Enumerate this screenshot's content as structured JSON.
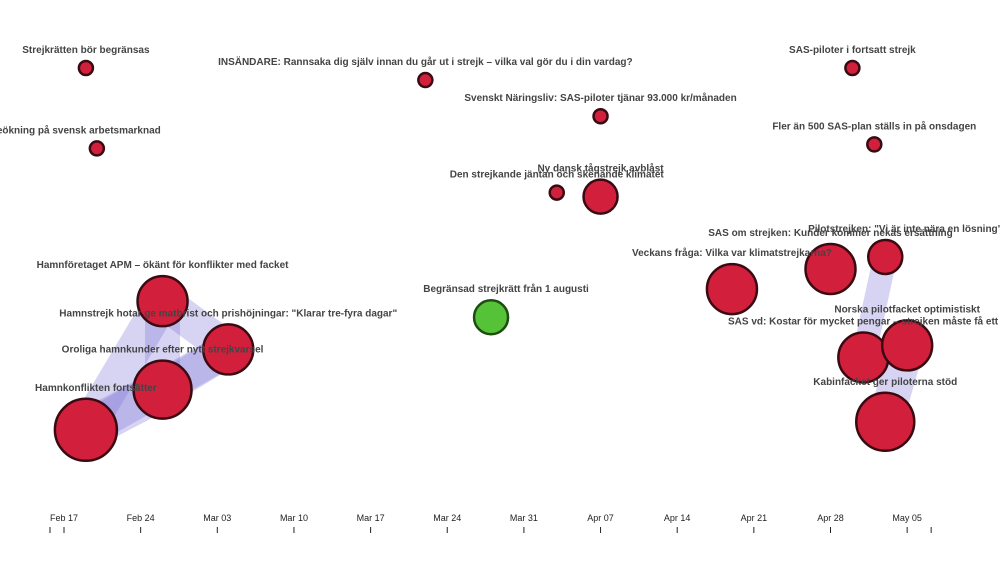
{
  "chart_data": {
    "type": "scatter",
    "title": "",
    "xlabel": "",
    "ylabel": "",
    "x_axis": {
      "type": "date",
      "ticks": [
        "Feb 17",
        "Feb 24",
        "Mar 03",
        "Mar 10",
        "Mar 17",
        "Mar 24",
        "Mar 31",
        "Apr 07",
        "Apr 14",
        "Apr 21",
        "Apr 28",
        "May 05"
      ]
    },
    "y_axis": {
      "visible": false
    },
    "grid": false,
    "legend": "none",
    "colors": {
      "default": "#d21f3c",
      "highlight": "#55c238",
      "link": "#7b6fd6",
      "outline": "#3a0a12"
    },
    "points": [
      {
        "id": "p1",
        "label": "Strejkrätten bör begränsas",
        "date": "2019-02-19",
        "y": 1.0,
        "size": 1,
        "color": "red"
      },
      {
        "id": "p2",
        "label": "stabil löneökning på svensk arbetsmarknad",
        "date": "2019-02-20",
        "y": 0.8,
        "size": 1,
        "color": "red"
      },
      {
        "id": "p3",
        "label": "Hamnkonflikten fortsätter",
        "date": "2019-02-19",
        "y": 0.1,
        "size": 5,
        "color": "red"
      },
      {
        "id": "p4",
        "label": "Hamnföretaget APM – ökänt för konflikter med facket",
        "date": "2019-02-26",
        "y": 0.42,
        "size": 3,
        "color": "red"
      },
      {
        "id": "p5",
        "label": "Hamnstrejk hotar ge matbrist och prishöjningar: \"Klarar tre-fyra dagar\"",
        "date": "2019-03-04",
        "y": 0.3,
        "size": 3,
        "color": "red"
      },
      {
        "id": "p6",
        "label": "Oroliga hamnkunder efter nytt strejkvarsel",
        "date": "2019-02-26",
        "y": 0.2,
        "size": 4,
        "color": "red"
      },
      {
        "id": "p7",
        "label": "INSÄNDARE: Rannsaka dig själv innan du går ut i strejk – vilka val gör du i din vardag?",
        "date": "2019-03-22",
        "y": 0.97,
        "size": 1,
        "color": "red"
      },
      {
        "id": "p8",
        "label": "Begränsad strejkrätt från 1 augusti",
        "date": "2019-03-28",
        "y": 0.38,
        "size": 2,
        "color": "green"
      },
      {
        "id": "p9",
        "label": "Svenskt Näringsliv: SAS-piloter tjänar 93.000 kr/månaden",
        "date": "2019-04-07",
        "y": 0.88,
        "size": 1,
        "color": "red"
      },
      {
        "id": "p10",
        "label": "Den strejkande jäntan och skenande klimatet",
        "date": "2019-04-03",
        "y": 0.69,
        "size": 1,
        "color": "red"
      },
      {
        "id": "p11",
        "label": "Ny dansk tågstrejk avblåst",
        "date": "2019-04-07",
        "y": 0.68,
        "size": 2,
        "color": "red"
      },
      {
        "id": "p12",
        "label": "Veckans fråga: Vilka var klimatstrejkarna?",
        "date": "2019-04-19",
        "y": 0.45,
        "size": 3,
        "color": "red"
      },
      {
        "id": "p13",
        "label": "SAS-piloter i fortsatt strejk",
        "date": "2019-04-30",
        "y": 1.0,
        "size": 1,
        "color": "red"
      },
      {
        "id": "p14",
        "label": "Fler än 500 SAS-plan ställs in på onsdagen",
        "date": "2019-05-02",
        "y": 0.81,
        "size": 1,
        "color": "red"
      },
      {
        "id": "p15",
        "label": "SAS om strejken: Kunder kommer nekas ersättning",
        "date": "2019-04-28",
        "y": 0.5,
        "size": 3,
        "color": "red"
      },
      {
        "id": "p16",
        "label": "Pilotstrejken: \"Vi är inte nära en lösning\"",
        "date": "2019-05-03",
        "y": 0.53,
        "size": 2,
        "color": "red"
      },
      {
        "id": "p17",
        "label": "SAS vd: Kostar för mycket pengar – strejken måste få ett slut",
        "date": "2019-05-01",
        "y": 0.28,
        "size": 3,
        "color": "red"
      },
      {
        "id": "p18",
        "label": "Norska pilotfacket optimistiskt",
        "date": "2019-05-05",
        "y": 0.31,
        "size": 3,
        "color": "red"
      },
      {
        "id": "p19",
        "label": "Kabinfacket ger piloterna stöd",
        "date": "2019-05-03",
        "y": 0.12,
        "size": 4,
        "color": "red"
      }
    ],
    "links": [
      [
        "p3",
        "p4"
      ],
      [
        "p3",
        "p6"
      ],
      [
        "p3",
        "p5"
      ],
      [
        "p4",
        "p5"
      ],
      [
        "p4",
        "p6"
      ],
      [
        "p6",
        "p5"
      ],
      [
        "p17",
        "p16"
      ],
      [
        "p19",
        "p18"
      ]
    ]
  }
}
